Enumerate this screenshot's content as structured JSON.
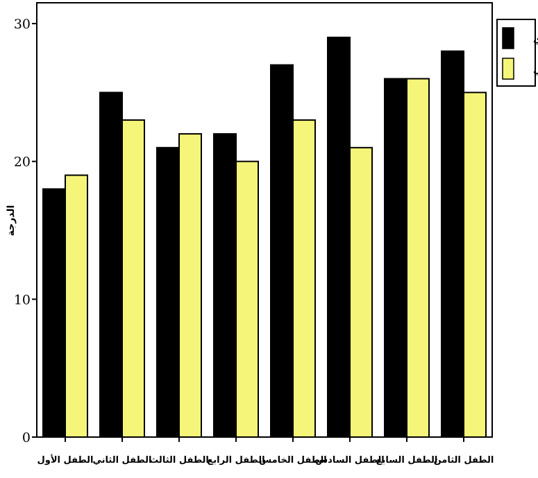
{
  "chart_data": {
    "type": "bar",
    "title": "",
    "xlabel": "",
    "ylabel": "الدرجة",
    "categories": [
      "الطفل الأول",
      "الطفل الثاني",
      "الطفل الثالث",
      "الطفل الرابع",
      "الطفل الخامس",
      "الطفل السادس",
      "الطفل السابع",
      "الطفل الثامن"
    ],
    "series": [
      {
        "name": "بعدي",
        "values": [
          18,
          25,
          21,
          22,
          27,
          29,
          26,
          28
        ],
        "color": "#000000"
      },
      {
        "name": "تتبعي",
        "values": [
          19,
          23,
          22,
          20,
          23,
          21,
          26,
          25
        ],
        "color": "#f5f57a"
      }
    ],
    "ylim": [
      0,
      30
    ],
    "yticks": [
      0,
      10,
      20,
      30
    ],
    "grid": false,
    "legend_position": "top-right"
  }
}
